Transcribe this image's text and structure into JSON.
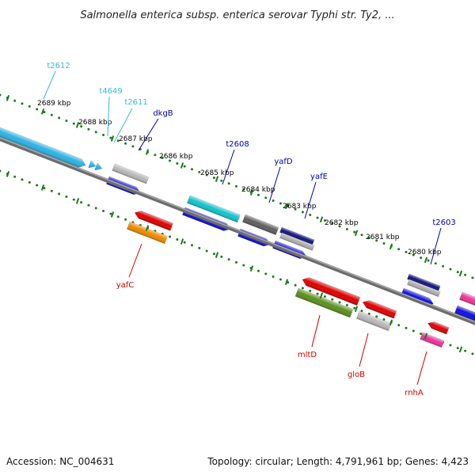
{
  "title": "Salmonella enterica subsp. enterica serovar Typhi str. Ty2, ...",
  "accession": "Accession: NC_004631",
  "summary": "Topology: circular; Length: 4,791,961 bp; Genes: 4,423",
  "colors": {
    "backbone": "#7a7a7a",
    "tick": "#1a7a1a",
    "forward_label": "#0000aa",
    "trna_label": "#33bbdd",
    "reverse_label": "#cc0000"
  },
  "ticks": [
    {
      "label": "2689 kbp"
    },
    {
      "label": "2688 kbp"
    },
    {
      "label": "2687 kbp"
    },
    {
      "label": "2686 kbp"
    },
    {
      "label": "2685 kbp"
    },
    {
      "label": "2684 kbp"
    },
    {
      "label": "2683 kbp"
    },
    {
      "label": "2682 kbp"
    },
    {
      "label": "2681 kbp"
    },
    {
      "label": "2680 kbp"
    }
  ],
  "forward_labels": [
    {
      "name": "t2612",
      "color": "#33bbdd"
    },
    {
      "name": "t4649",
      "color": "#33bbdd"
    },
    {
      "name": "t2611",
      "color": "#33bbdd"
    },
    {
      "name": "dkgB",
      "color": "#0000aa"
    },
    {
      "name": "t2608",
      "color": "#0000aa"
    },
    {
      "name": "yafD",
      "color": "#0000aa"
    },
    {
      "name": "yafE",
      "color": "#0000aa"
    },
    {
      "name": "t2603",
      "color": "#0000aa"
    }
  ],
  "reverse_labels": [
    {
      "name": "yafC",
      "color": "#cc0000"
    },
    {
      "name": "mltD",
      "color": "#cc0000"
    },
    {
      "name": "gloB",
      "color": "#cc0000"
    },
    {
      "name": "rnhA",
      "color": "#cc0000"
    }
  ]
}
